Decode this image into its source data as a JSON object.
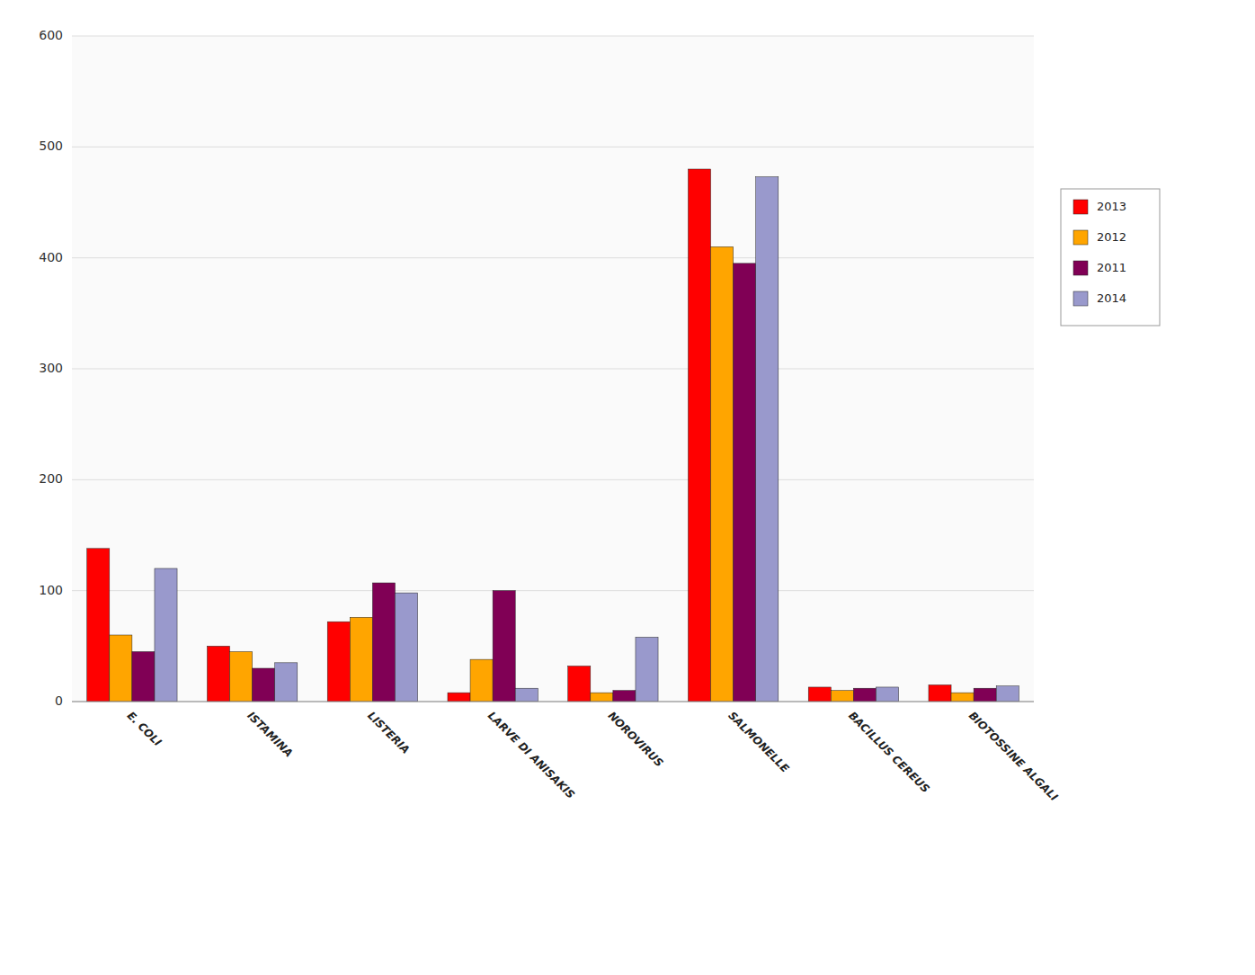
{
  "chart_data": {
    "type": "bar",
    "categories": [
      "E. COLI",
      "ISTAMINA",
      "LISTERIA",
      "LARVE DI ANISAKIS",
      "NOROVIRUS",
      "SALMONELLE",
      "BACILLUS CEREUS",
      "BIOTOSSINE ALGALI"
    ],
    "series": [
      {
        "name": "2013",
        "color": "#FF0000",
        "values": [
          138,
          50,
          72,
          8,
          32,
          480,
          13,
          15
        ]
      },
      {
        "name": "2012",
        "color": "#FFA500",
        "values": [
          60,
          45,
          76,
          38,
          8,
          410,
          10,
          8
        ]
      },
      {
        "name": "2011",
        "color": "#800055",
        "values": [
          45,
          30,
          107,
          100,
          10,
          395,
          12,
          12
        ]
      },
      {
        "name": "2014",
        "color": "#9999CC",
        "values": [
          120,
          35,
          98,
          12,
          58,
          473,
          13,
          14
        ]
      }
    ],
    "ylim": [
      0,
      600
    ],
    "yticks": [
      0,
      100,
      200,
      300,
      400,
      500,
      600
    ],
    "grid": true,
    "legend": "right"
  }
}
